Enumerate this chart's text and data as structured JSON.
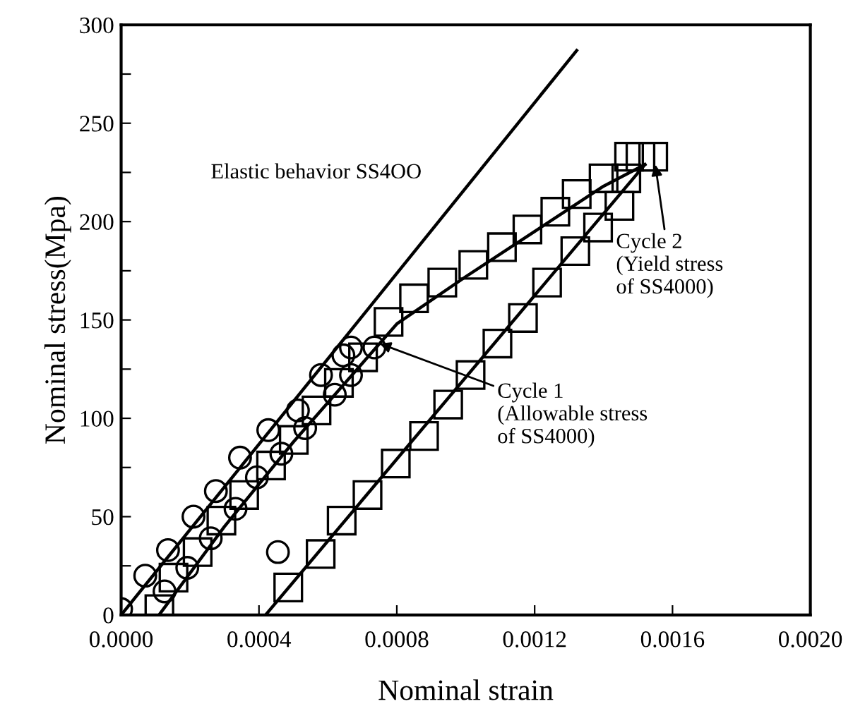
{
  "chart_data": {
    "type": "scatter",
    "xlabel": "Nominal strain",
    "ylabel": "Nominal stress(Mpa)",
    "xlim": [
      0,
      0.002
    ],
    "ylim": [
      0,
      300
    ],
    "xticks": [
      {
        "value": 0,
        "label": "0.0000"
      },
      {
        "value": 0.0004,
        "label": "0.0004"
      },
      {
        "value": 0.0008,
        "label": "0.0008"
      },
      {
        "value": 0.0012,
        "label": "0.0012"
      },
      {
        "value": 0.0016,
        "label": "0.0016"
      },
      {
        "value": 0.002,
        "label": "0.0020"
      }
    ],
    "yticks": [
      0,
      {
        "value": 25,
        "label": null
      },
      50,
      {
        "value": 75,
        "label": null
      },
      100,
      {
        "value": 125,
        "label": null
      },
      150,
      {
        "value": 175,
        "label": null
      },
      200,
      {
        "value": 225,
        "label": null
      },
      250,
      {
        "value": 275,
        "label": null
      },
      300
    ],
    "grid": false,
    "series": [
      {
        "marker": "circle",
        "color": "#000000",
        "x": [
          0,
          7e-05,
          0.000136,
          0.00021,
          0.000275,
          0.000345,
          0.000427,
          0.000513,
          0.00058,
          0.000645,
          0.000667,
          0.000735,
          0.000667,
          0.00062,
          0.000534,
          0.000465,
          0.000394,
          0.000332,
          0.00026,
          0.000192,
          0.000126,
          0.000455
        ],
        "values": [
          3,
          20,
          33,
          50,
          63,
          80,
          94,
          104,
          122,
          132,
          136,
          136,
          122,
          112,
          95,
          82,
          70,
          54,
          39,
          24,
          12,
          32
        ]
      },
      {
        "marker": "square",
        "color": "#000000",
        "x": [
          0.000111,
          0.000152,
          0.000222,
          0.000291,
          0.000357,
          0.000435,
          0.000501,
          0.000567,
          0.000632,
          0.000702,
          0.000776,
          0.00085,
          0.000932,
          0.001022,
          0.001105,
          0.001179,
          0.00126,
          0.001322,
          0.0014,
          0.001474,
          0.001507,
          0.001544,
          0.001466,
          0.001446,
          0.001384,
          0.001318,
          0.001236,
          0.001166,
          0.001092,
          0.001014,
          0.000949,
          0.000879,
          0.000797,
          0.000715,
          0.00064,
          0.000579,
          0.000485
        ],
        "values": [
          3,
          19,
          32,
          48,
          61,
          76,
          89,
          104,
          118,
          131,
          149,
          161,
          169,
          178,
          187,
          196,
          205,
          214,
          222,
          233,
          233,
          233,
          222,
          208,
          197,
          185,
          169,
          151,
          138,
          122,
          107,
          91,
          77,
          61,
          48,
          31,
          14
        ]
      },
      {
        "type": "line",
        "color": "#000000",
        "x": [
          0,
          0.001322
        ],
        "values": [
          0,
          287
        ]
      },
      {
        "type": "line",
        "color": "#000000",
        "x": [
          0.00011,
          0.0003,
          0.0005,
          0.0007,
          0.0008,
          0.001,
          0.0012,
          0.0014,
          0.00152
        ],
        "values": [
          0,
          45,
          88,
          128,
          148,
          172,
          195,
          218,
          229
        ]
      },
      {
        "type": "line",
        "color": "#000000",
        "x": [
          0.000419,
          0.00152
        ],
        "values": [
          0,
          229
        ]
      }
    ],
    "annotations": [
      "Elastic behavior SS4OO",
      {
        "text": "Cycle 1\n(Allowable stress\nof SS4000)",
        "x": 0.00075,
        "y": 138
      },
      {
        "text": "Cycle 2\n(Yield stress\nof SS4000)",
        "x": 0.00155,
        "y": 229
      }
    ]
  }
}
